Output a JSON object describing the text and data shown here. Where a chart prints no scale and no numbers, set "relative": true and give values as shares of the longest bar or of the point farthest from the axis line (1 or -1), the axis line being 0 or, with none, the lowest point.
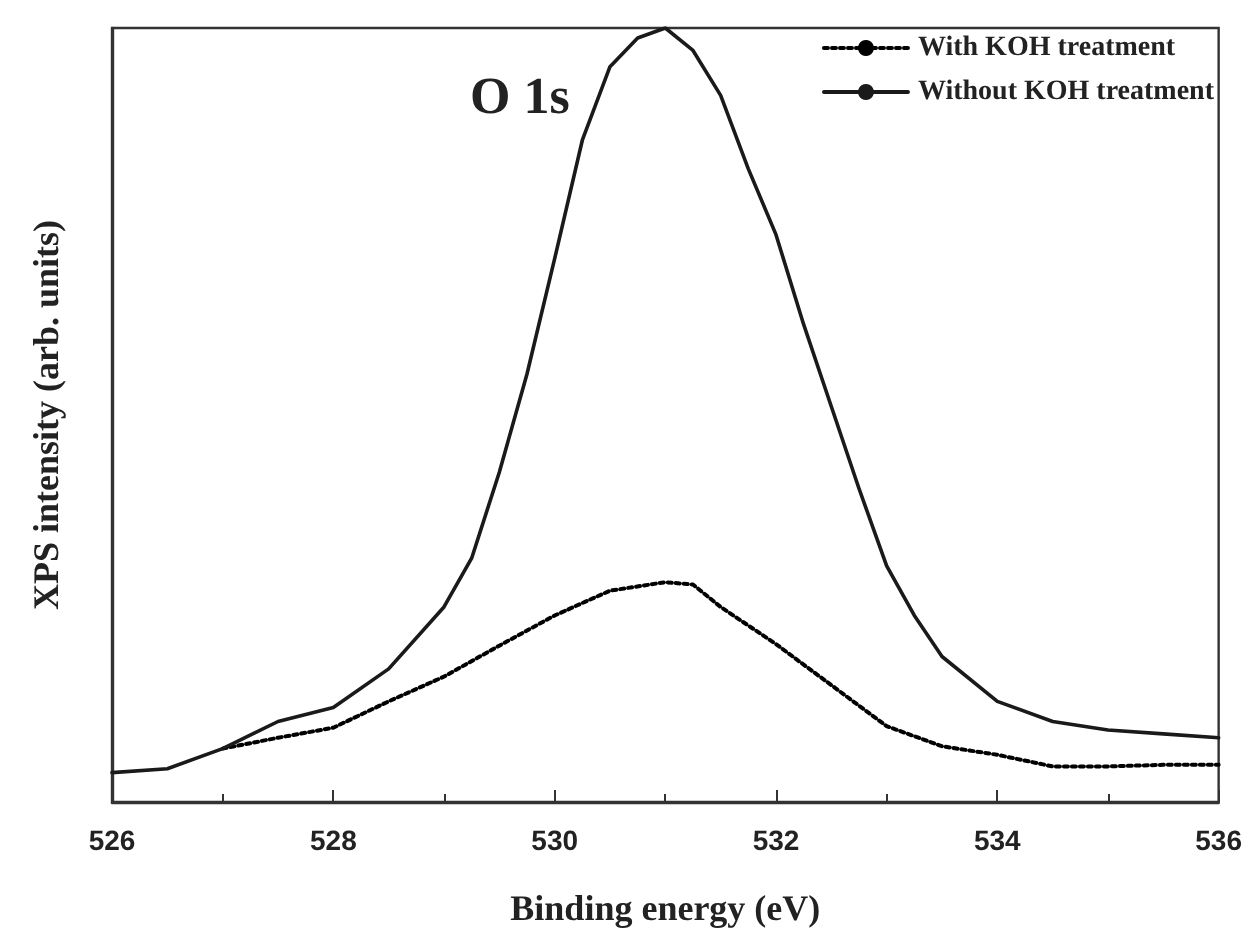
{
  "chart_data": {
    "type": "line",
    "title": "O 1s",
    "xlabel": "Binding energy (eV)",
    "ylabel": "XPS intensity (arb. units)",
    "relative": true,
    "xlim": [
      526,
      536
    ],
    "xticks": [
      526,
      528,
      530,
      532,
      534,
      536
    ],
    "grid": false,
    "legend": "top right",
    "marker": "none",
    "series": [
      {
        "name": "With KOH treatment",
        "color": "#000000",
        "line_style": "dotted",
        "x": [
          527,
          527.5,
          528,
          528.5,
          529,
          529.5,
          530,
          530.5,
          531,
          531.25,
          531.5,
          532,
          532.5,
          533,
          533.5,
          534,
          534.5,
          535,
          535.5,
          536
        ],
        "values": [
          0.069,
          0.083,
          0.096,
          0.13,
          0.162,
          0.202,
          0.241,
          0.273,
          0.284,
          0.281,
          0.252,
          0.204,
          0.151,
          0.098,
          0.072,
          0.061,
          0.046,
          0.046,
          0.048,
          0.048
        ]
      },
      {
        "name": "Without KOH treatment",
        "color": "#1a1a1a",
        "line_style": "solid",
        "x": [
          526,
          526.5,
          527,
          527.5,
          528,
          528.5,
          529,
          529.25,
          529.5,
          529.75,
          530,
          530.25,
          530.5,
          530.75,
          531,
          531.25,
          531.5,
          531.75,
          532,
          532.25,
          532.5,
          532.75,
          533,
          533.25,
          533.5,
          534,
          534.5,
          535,
          535.5,
          536
        ],
        "values": [
          0.038,
          0.043,
          0.069,
          0.104,
          0.122,
          0.172,
          0.252,
          0.315,
          0.426,
          0.553,
          0.702,
          0.855,
          0.95,
          0.987,
          1,
          0.971,
          0.913,
          0.818,
          0.733,
          0.617,
          0.511,
          0.405,
          0.305,
          0.241,
          0.188,
          0.13,
          0.104,
          0.093,
          0.088,
          0.083
        ]
      }
    ]
  }
}
